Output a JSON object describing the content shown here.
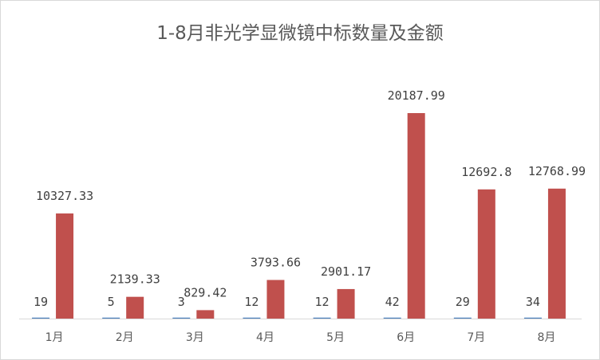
{
  "chart_data": {
    "type": "bar",
    "title": "1-8月非光学显微镜中标数量及金额",
    "categories": [
      "1月",
      "2月",
      "3月",
      "4月",
      "5月",
      "6月",
      "7月",
      "8月"
    ],
    "series": [
      {
        "values": [
          19,
          5,
          3,
          12,
          12,
          42,
          29,
          34
        ],
        "labels": [
          "19",
          "5",
          "3",
          "12",
          "12",
          "42",
          "29",
          "34"
        ],
        "color": "#4a7ebb"
      },
      {
        "values": [
          10327.33,
          2139.33,
          829.42,
          3793.66,
          2901.17,
          20187.99,
          12692.8,
          12768.99
        ],
        "labels": [
          "10327.33",
          "2139.33",
          "829.42",
          "3793.66",
          "2901.17",
          "20187.99",
          "12692.8",
          "12768.99"
        ],
        "color": "#c0504d"
      }
    ],
    "ylim": [
      0,
      20187.99
    ],
    "grid": false,
    "legend": "none"
  }
}
